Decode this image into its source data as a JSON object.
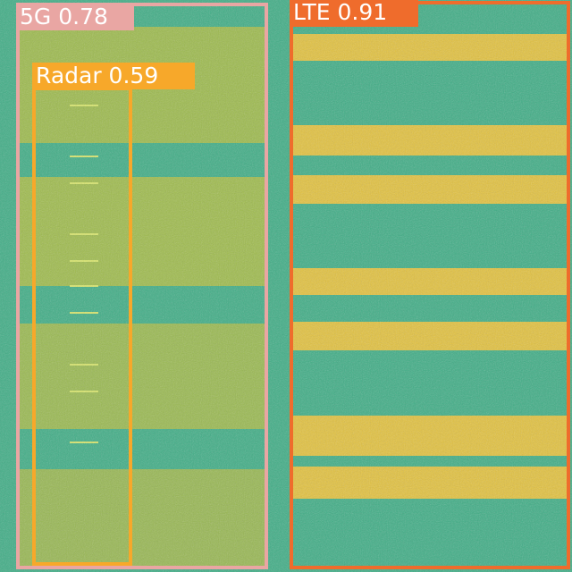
{
  "detections": [
    {
      "label": "5G 0.78"
    },
    {
      "label": "Radar 0.59"
    },
    {
      "label": "LTE 0.91"
    }
  ]
}
